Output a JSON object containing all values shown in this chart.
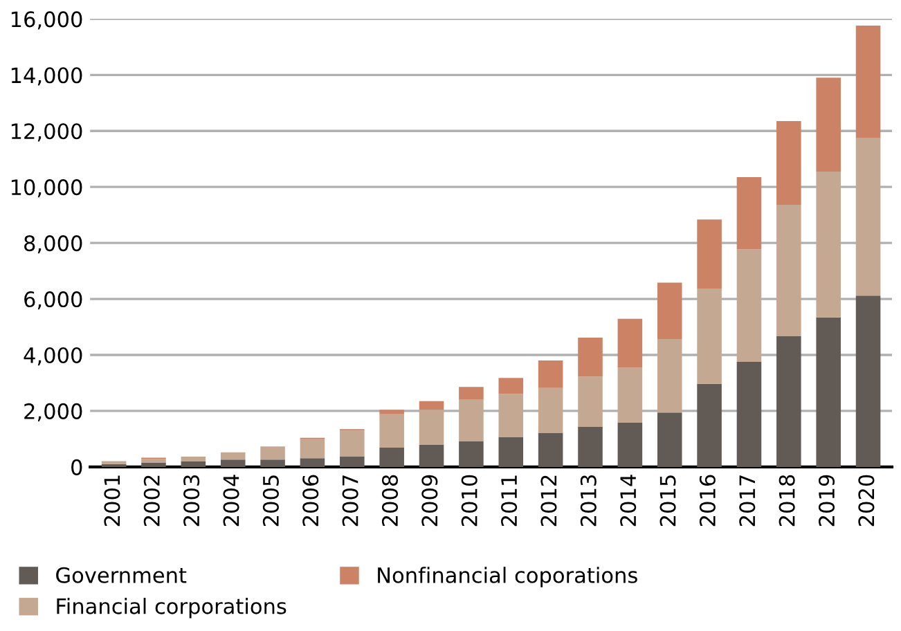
{
  "chart_data": {
    "type": "bar",
    "stacked": true,
    "categories": [
      "2001",
      "2002",
      "2003",
      "2004",
      "2005",
      "2006",
      "2007",
      "2008",
      "2009",
      "2010",
      "2011",
      "2012",
      "2013",
      "2014",
      "2015",
      "2016",
      "2017",
      "2018",
      "2019",
      "2020"
    ],
    "series": [
      {
        "name": "Government",
        "color": "#625a54",
        "values": [
          100,
          160,
          210,
          260,
          260,
          310,
          370,
          690,
          800,
          910,
          1070,
          1220,
          1430,
          1580,
          1940,
          2970,
          3750,
          4670,
          5340,
          6120
        ]
      },
      {
        "name": "Financial corporations",
        "color": "#c5a892",
        "values": [
          110,
          120,
          160,
          260,
          470,
          680,
          930,
          1190,
          1240,
          1490,
          1540,
          1600,
          1800,
          1960,
          2630,
          3400,
          4020,
          4690,
          5210,
          5620
        ]
      },
      {
        "name": "Nonfinancial coporations",
        "color": "#cc8264",
        "values": [
          null,
          50,
          null,
          null,
          null,
          50,
          50,
          160,
          310,
          460,
          570,
          980,
          1390,
          1750,
          2010,
          2470,
          2580,
          2990,
          3350,
          4020
        ]
      }
    ],
    "ylim": [
      0,
      16000
    ],
    "yticks": [
      {
        "value": 0,
        "label": "0"
      },
      {
        "value": 2000,
        "label": "2,000"
      },
      {
        "value": 4000,
        "label": "4,000"
      },
      {
        "value": 6000,
        "label": "6,000"
      },
      {
        "value": 8000,
        "label": "8,000"
      },
      {
        "value": 10000,
        "label": "10,000"
      },
      {
        "value": 12000,
        "label": "12,000"
      },
      {
        "value": 14000,
        "label": "14,000"
      },
      {
        "value": 16000,
        "label": "16,000"
      }
    ],
    "grid": "y",
    "legend": "bottom left"
  }
}
